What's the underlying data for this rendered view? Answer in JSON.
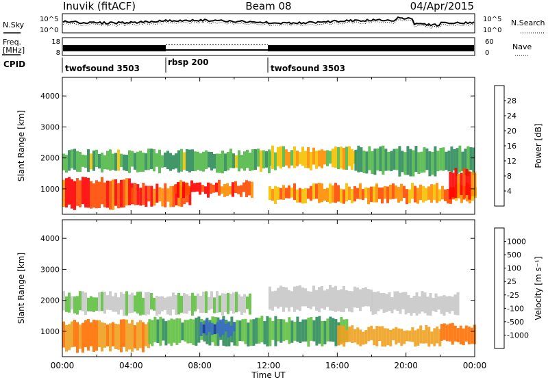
{
  "header": {
    "station": "Inuvik (fitACF)",
    "beam": "Beam 08",
    "date": "04/Apr/2015"
  },
  "top_strips": {
    "nsky_label": "N.Sky",
    "nsky_ticks": [
      "10^5",
      "10^0"
    ],
    "nsearch_label": "N.Search",
    "freq_label": "Freq.",
    "freq_unit": "[MHz]",
    "freq_ticks": [
      "18",
      "8"
    ],
    "nave_label": "Nave",
    "nave_ticks": [
      "60",
      "0"
    ],
    "cpid_label": "CPID",
    "cpid_segments": [
      {
        "label": "twofsound 3503",
        "start_hour": 0,
        "end_hour": 6
      },
      {
        "label": "rbsp 200",
        "start_hour": 6,
        "end_hour": 12
      },
      {
        "label": "twofsound 3503",
        "start_hour": 12,
        "end_hour": 24
      }
    ]
  },
  "power_panel": {
    "ylabel": "Slant Range [km]",
    "cbar_label": "Power [dB]",
    "cbar_ticks": [
      "28",
      "24",
      "20",
      "16",
      "12",
      "8",
      "4"
    ],
    "cbar_colors": [
      "#ff0000",
      "#ff4a00",
      "#ff8c00",
      "#f5c000",
      "#52b848",
      "#2c8c5a",
      "#3a5cc8",
      "#0000ff"
    ]
  },
  "velocity_panel": {
    "ylabel": "Slant Range [km]",
    "cbar_label": "Velocity [m s⁻¹]",
    "cbar_ticks": [
      "1000",
      "500",
      "100",
      "25",
      "-25",
      "-100",
      "-500",
      "-1000"
    ],
    "cbar_colors": [
      "#1a3a9c",
      "#3a6cc8",
      "#2c8c5a",
      "#60c040",
      "#c8c8c8",
      "#f0a020",
      "#ff7000",
      "#ff2000",
      "#ff0000"
    ]
  },
  "x_axis": {
    "xlabel": "Time UT",
    "ticks": [
      "00:00",
      "04:00",
      "08:00",
      "12:00",
      "16:00",
      "20:00",
      "00:00"
    ]
  },
  "y_ticks": [
    "4000",
    "3000",
    "2000",
    "1000"
  ],
  "chart_data": [
    {
      "type": "heatmap",
      "title": "Power",
      "xlabel": "Time UT",
      "ylabel": "Slant Range [km]",
      "xlim": [
        0,
        24
      ],
      "ylim": [
        180,
        4600
      ],
      "colorbar": {
        "label": "Power [dB]",
        "range": [
          0,
          30
        ]
      },
      "bands": [
        {
          "start_hour": 0.0,
          "end_hour": 4.0,
          "range_min_km": 300,
          "range_max_km": 1400,
          "value": 28
        },
        {
          "start_hour": 4.0,
          "end_hour": 7.5,
          "range_min_km": 400,
          "range_max_km": 1200,
          "value": 26
        },
        {
          "start_hour": 6.5,
          "end_hour": 11.0,
          "range_min_km": 700,
          "range_max_km": 1300,
          "value": 27
        },
        {
          "start_hour": 0.0,
          "end_hour": 12.0,
          "range_min_km": 1500,
          "range_max_km": 2300,
          "value": 12
        },
        {
          "start_hour": 12.0,
          "end_hour": 17.0,
          "range_min_km": 1600,
          "range_max_km": 2400,
          "value": 18
        },
        {
          "start_hour": 12.0,
          "end_hour": 24.0,
          "range_min_km": 500,
          "range_max_km": 1200,
          "value": 22
        },
        {
          "start_hour": 17.0,
          "end_hour": 24.0,
          "range_min_km": 1400,
          "range_max_km": 2400,
          "value": 10
        },
        {
          "start_hour": 22.5,
          "end_hour": 24.0,
          "range_min_km": 600,
          "range_max_km": 1700,
          "value": 26
        }
      ]
    },
    {
      "type": "heatmap",
      "title": "Velocity",
      "xlabel": "Time UT",
      "ylabel": "Slant Range [km]",
      "xlim": [
        0,
        24
      ],
      "ylim": [
        180,
        4600
      ],
      "colorbar": {
        "label": "Velocity [m s-1]",
        "range": [
          -1000,
          1000
        ]
      },
      "bands": [
        {
          "start_hour": 0.0,
          "end_hour": 5.0,
          "range_min_km": 300,
          "range_max_km": 1400,
          "value": -100
        },
        {
          "start_hour": 0.0,
          "end_hour": 11.0,
          "range_min_km": 1500,
          "range_max_km": 2300,
          "value": 25
        },
        {
          "start_hour": 5.0,
          "end_hour": 16.5,
          "range_min_km": 500,
          "range_max_km": 1500,
          "value": 100
        },
        {
          "start_hour": 8.0,
          "end_hour": 10.0,
          "range_min_km": 800,
          "range_max_km": 1400,
          "value": 900
        },
        {
          "start_hour": 12.0,
          "end_hour": 18.0,
          "range_min_km": 1600,
          "range_max_km": 2500,
          "value": 0
        },
        {
          "start_hour": 16.0,
          "end_hour": 22.0,
          "range_min_km": 500,
          "range_max_km": 1200,
          "value": -40
        },
        {
          "start_hour": 18.0,
          "end_hour": 23.0,
          "range_min_km": 1500,
          "range_max_km": 2300,
          "value": -10
        },
        {
          "start_hour": 22.0,
          "end_hour": 24.0,
          "range_min_km": 500,
          "range_max_km": 1300,
          "value": -300
        }
      ]
    }
  ]
}
